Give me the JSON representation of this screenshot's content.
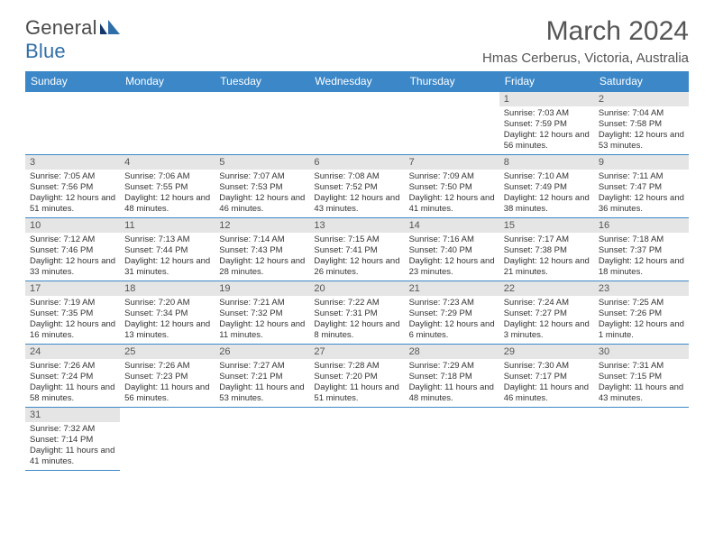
{
  "brand": {
    "part1": "General",
    "part2": "Blue"
  },
  "title": {
    "month": "March 2024",
    "location": "Hmas Cerberus, Victoria, Australia"
  },
  "colors": {
    "header_bg": "#3b87c8",
    "header_text": "#ffffff",
    "daynum_bg": "#e5e5e5",
    "border": "#3b87c8",
    "page_bg": "#ffffff",
    "text": "#333333",
    "title_text": "#555555",
    "logo_gray": "#4a4a4a",
    "logo_blue": "#2f6fa8"
  },
  "fonts": {
    "base": "Arial",
    "month_size_pt": 22,
    "location_size_pt": 11,
    "header_size_pt": 9,
    "cell_size_pt": 7
  },
  "weekdays": [
    "Sunday",
    "Monday",
    "Tuesday",
    "Wednesday",
    "Thursday",
    "Friday",
    "Saturday"
  ],
  "calendar": {
    "first_weekday_index": 5,
    "days": [
      {
        "n": 1,
        "sr": "7:03 AM",
        "ss": "7:59 PM",
        "dl": "12 hours and 56 minutes."
      },
      {
        "n": 2,
        "sr": "7:04 AM",
        "ss": "7:58 PM",
        "dl": "12 hours and 53 minutes."
      },
      {
        "n": 3,
        "sr": "7:05 AM",
        "ss": "7:56 PM",
        "dl": "12 hours and 51 minutes."
      },
      {
        "n": 4,
        "sr": "7:06 AM",
        "ss": "7:55 PM",
        "dl": "12 hours and 48 minutes."
      },
      {
        "n": 5,
        "sr": "7:07 AM",
        "ss": "7:53 PM",
        "dl": "12 hours and 46 minutes."
      },
      {
        "n": 6,
        "sr": "7:08 AM",
        "ss": "7:52 PM",
        "dl": "12 hours and 43 minutes."
      },
      {
        "n": 7,
        "sr": "7:09 AM",
        "ss": "7:50 PM",
        "dl": "12 hours and 41 minutes."
      },
      {
        "n": 8,
        "sr": "7:10 AM",
        "ss": "7:49 PM",
        "dl": "12 hours and 38 minutes."
      },
      {
        "n": 9,
        "sr": "7:11 AM",
        "ss": "7:47 PM",
        "dl": "12 hours and 36 minutes."
      },
      {
        "n": 10,
        "sr": "7:12 AM",
        "ss": "7:46 PM",
        "dl": "12 hours and 33 minutes."
      },
      {
        "n": 11,
        "sr": "7:13 AM",
        "ss": "7:44 PM",
        "dl": "12 hours and 31 minutes."
      },
      {
        "n": 12,
        "sr": "7:14 AM",
        "ss": "7:43 PM",
        "dl": "12 hours and 28 minutes."
      },
      {
        "n": 13,
        "sr": "7:15 AM",
        "ss": "7:41 PM",
        "dl": "12 hours and 26 minutes."
      },
      {
        "n": 14,
        "sr": "7:16 AM",
        "ss": "7:40 PM",
        "dl": "12 hours and 23 minutes."
      },
      {
        "n": 15,
        "sr": "7:17 AM",
        "ss": "7:38 PM",
        "dl": "12 hours and 21 minutes."
      },
      {
        "n": 16,
        "sr": "7:18 AM",
        "ss": "7:37 PM",
        "dl": "12 hours and 18 minutes."
      },
      {
        "n": 17,
        "sr": "7:19 AM",
        "ss": "7:35 PM",
        "dl": "12 hours and 16 minutes."
      },
      {
        "n": 18,
        "sr": "7:20 AM",
        "ss": "7:34 PM",
        "dl": "12 hours and 13 minutes."
      },
      {
        "n": 19,
        "sr": "7:21 AM",
        "ss": "7:32 PM",
        "dl": "12 hours and 11 minutes."
      },
      {
        "n": 20,
        "sr": "7:22 AM",
        "ss": "7:31 PM",
        "dl": "12 hours and 8 minutes."
      },
      {
        "n": 21,
        "sr": "7:23 AM",
        "ss": "7:29 PM",
        "dl": "12 hours and 6 minutes."
      },
      {
        "n": 22,
        "sr": "7:24 AM",
        "ss": "7:27 PM",
        "dl": "12 hours and 3 minutes."
      },
      {
        "n": 23,
        "sr": "7:25 AM",
        "ss": "7:26 PM",
        "dl": "12 hours and 1 minute."
      },
      {
        "n": 24,
        "sr": "7:26 AM",
        "ss": "7:24 PM",
        "dl": "11 hours and 58 minutes."
      },
      {
        "n": 25,
        "sr": "7:26 AM",
        "ss": "7:23 PM",
        "dl": "11 hours and 56 minutes."
      },
      {
        "n": 26,
        "sr": "7:27 AM",
        "ss": "7:21 PM",
        "dl": "11 hours and 53 minutes."
      },
      {
        "n": 27,
        "sr": "7:28 AM",
        "ss": "7:20 PM",
        "dl": "11 hours and 51 minutes."
      },
      {
        "n": 28,
        "sr": "7:29 AM",
        "ss": "7:18 PM",
        "dl": "11 hours and 48 minutes."
      },
      {
        "n": 29,
        "sr": "7:30 AM",
        "ss": "7:17 PM",
        "dl": "11 hours and 46 minutes."
      },
      {
        "n": 30,
        "sr": "7:31 AM",
        "ss": "7:15 PM",
        "dl": "11 hours and 43 minutes."
      },
      {
        "n": 31,
        "sr": "7:32 AM",
        "ss": "7:14 PM",
        "dl": "11 hours and 41 minutes."
      }
    ]
  },
  "labels": {
    "sunrise": "Sunrise:",
    "sunset": "Sunset:",
    "daylight": "Daylight:"
  }
}
